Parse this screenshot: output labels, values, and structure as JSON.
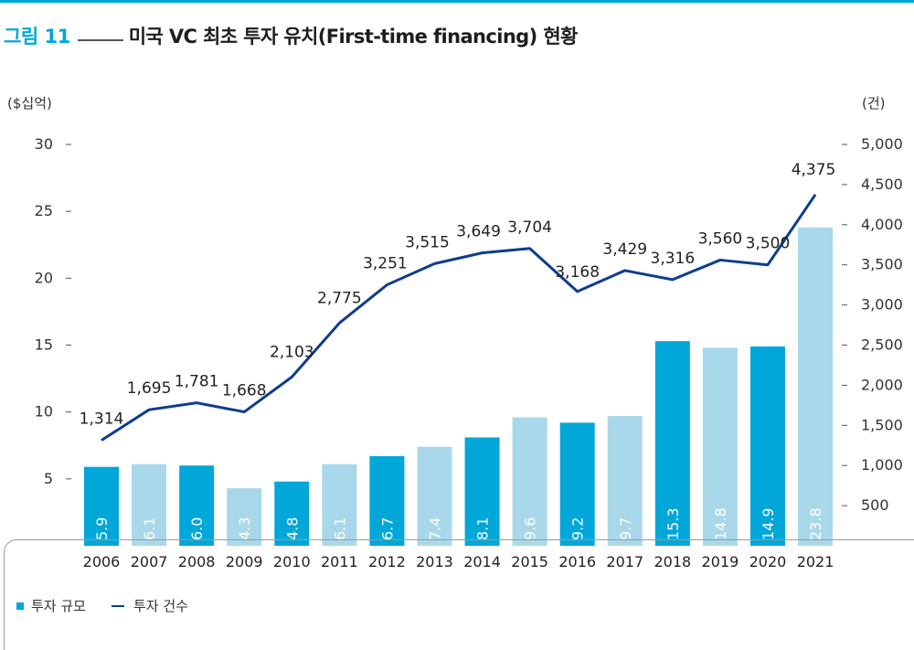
{
  "header": {
    "fig_label": "그림 11",
    "title": "미국 VC 최초 투자 유치(First-time financing) 현황"
  },
  "colors": {
    "accent": "#00a7d8",
    "bar_dark": "#00a7d8",
    "bar_light": "#a9d8ea",
    "line": "#0f3d8c"
  },
  "chart_data": {
    "type": "bar+line",
    "categories": [
      "2006",
      "2007",
      "2008",
      "2009",
      "2010",
      "2011",
      "2012",
      "2013",
      "2014",
      "2015",
      "2016",
      "2017",
      "2018",
      "2019",
      "2020",
      "2021"
    ],
    "series": [
      {
        "name": "투자 규모",
        "type": "bar",
        "axis": "left",
        "values": [
          5.9,
          6.1,
          6.0,
          4.3,
          4.8,
          6.1,
          6.7,
          7.4,
          8.1,
          9.6,
          9.2,
          9.7,
          15.3,
          14.8,
          14.9,
          23.8
        ],
        "labels": [
          "5.9",
          "6.1",
          "6.0",
          "4.3",
          "4.8",
          "6.1",
          "6.7",
          "7.4",
          "8.1",
          "9.6",
          "9.2",
          "9.7",
          "15.3",
          "14.8",
          "14.9",
          "23.8"
        ],
        "shade": [
          "dark",
          "light",
          "dark",
          "light",
          "dark",
          "light",
          "dark",
          "light",
          "dark",
          "light",
          "dark",
          "light",
          "dark",
          "light",
          "dark",
          "light"
        ]
      },
      {
        "name": "투자 건수",
        "type": "line",
        "axis": "right",
        "values": [
          1314,
          1695,
          1781,
          1668,
          2103,
          2775,
          3251,
          3515,
          3649,
          3704,
          3168,
          3429,
          3316,
          3560,
          3500,
          4375
        ],
        "labels": [
          "1,314",
          "1,695",
          "1,781",
          "1,668",
          "2,103",
          "2,775",
          "3,251",
          "3,515",
          "3,649",
          "3,704",
          "3,168",
          "3,429",
          "3,316",
          "3,560",
          "3,500",
          "4,375"
        ]
      }
    ],
    "y_left": {
      "label": "($십억)",
      "ticks": [
        "5",
        "10",
        "15",
        "20",
        "25",
        "30"
      ],
      "range": [
        0,
        30
      ]
    },
    "y_right": {
      "label": "(건)",
      "ticks": [
        "500",
        "1,000",
        "1,500",
        "2,000",
        "2,500",
        "3,000",
        "3,500",
        "4,000",
        "4,500",
        "5,000"
      ],
      "range": [
        0,
        5000
      ]
    },
    "legend": [
      "투자 규모",
      "투자 건수"
    ],
    "legend_position": "bottom-left",
    "grid": false
  }
}
